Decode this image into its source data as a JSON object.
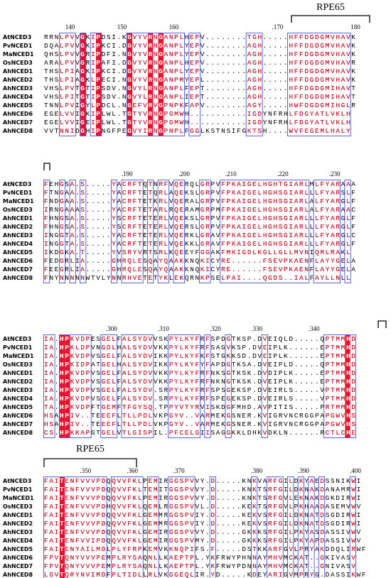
{
  "blocks": [
    {
      "label": "RPE65",
      "positions": [
        "140",
        "150",
        "160",
        ".170",
        "180"
      ],
      "rows": [
        {
          "name": "AtNCED3",
          "seq": "RRNLPVVGKIPDSI.KGVYVRNGANPLHEPV........TGH.....HFFDGDGMVHAVK"
        },
        {
          "name": "PvNCED1",
          "seq": "DQALPVVGKIPKCI.DGVYVRNGANPLYEPV........AGH.....HFFDGDGMVHAVK"
        },
        {
          "name": "MaNCED1",
          "seq": "QHSLPVVGRIPDFI.NGVYVRNGANPLYEPV........AGH.....HFFDGDGMVHAVK"
        },
        {
          "name": "OsNCED3",
          "seq": "ARALPVVGRIPAFI.DGVYVRNGANPLHEPV........AGH.....HFFDGDGMVHAVR"
        },
        {
          "name": "AhNCED1",
          "seq": "THSLPIAGKIPKCI.DGVYVRNGANPLYEPV........AGH.....HFFDGDGMVHAVK"
        },
        {
          "name": "AhNCED2",
          "seq": "THSLPIAGKLPECI.NGVYVRNGANPMYEPL........AGH.....HFFDGDGMVHAVK"
        },
        {
          "name": "AhNCED3",
          "seq": "VHSLPVTGTIPSDV.NGVYLRNGANPLFEPT........AGH.....HFFDGDGMIHAVT"
        },
        {
          "name": "AhNCED4",
          "seq": "VHSLPITGTIPSDV.NGVYLRNGANPLIEPT........AGH.....HFFDGDGMIHAVT"
        },
        {
          "name": "AhNCED5",
          "seq": "TNNLPVIGYLPDCL.NGEFVRVGPNPKFAPV........AGY.....HWFDGDGMIHGLR"
        },
        {
          "name": "AhNCED6",
          "seq": "EGELVVIGKIPLWL.TGTYVRNGPGMWH...........IGDYNFRHLFDGYATLVKLH"
        },
        {
          "name": "AhNCED7",
          "seq": "EGELVVIGEIPLWL.TGTYVRNGPGMWH...........IGDYNFRHLFDGYATLVKLH"
        },
        {
          "name": "AhNCED8",
          "seq": "VVTNNIDGHIPNGFPEGVYIRNGPNPLFGGLKSTNSIFGKTSH....WVFEGEMLHALY"
        }
      ]
    },
    {
      "positions": [
        ".190",
        ".200",
        ".210",
        ".220",
        ".230"
      ],
      "rows": [
        {
          "name": "AtNCED3",
          "seq": "FEHGSA.S.....YACRFTQTNRFVQERQLGRPVFPKAIGELHGHTGIARLMLFYARAAA"
        },
        {
          "name": "PvNCED1",
          "seq": "FTNGAA.S.....YACRFTETQRLAQEKSLGRPVFPKAIGELHGHSGIARLLLFYARSLF"
        },
        {
          "name": "MaNCED1",
          "seq": "FNDGAA.S.....YACRFTETKRLVQERALGRPVFPKAIGELHGHSGIARLALFYARGLF"
        },
        {
          "name": "OsNCED3",
          "seq": "IRNGAAAS.....YACRFTETARLRQERAMGRPMFPKAIGELHGHSGIARLALFYARAAC"
        },
        {
          "name": "AhNCED1",
          "seq": "FHNGSA.S.....YSCRFTETERLVQEKSLGRPVFPKAIGELHGHSGIARLLLFYARGLF"
        },
        {
          "name": "AhNCED2",
          "seq": "FHNGSA.S.....YSCRFTETERLVQERSLGRPVFPKAIGELHGHSGIARLLLFYARGLF"
        },
        {
          "name": "AhNCED3",
          "seq": "INGGTA.S.....YACRFTETERLVQERKLGRAVFPKAIGELHGHSGIARLLLFYARGLC"
        },
        {
          "name": "AhNCED4",
          "seq": "INGGTA.S.....YACRFTETERLVQEKKLGRAVFPKAIGELHGHSGIARLLLFYARGLF"
        },
        {
          "name": "AhNCED5",
          "seq": "IKDGKA.T.....YVSRYVRTSRLKQEEYFGGAKFMKIGDLKGLLGLLMVNIQMLRAKL"
        },
        {
          "name": "AhNCED6",
          "seq": "FEDGRLIA.....GHRQLESQAYQAAKKNQKICYRE......FSEVPKAENFLAYYGELA"
        },
        {
          "name": "AhNCED7",
          "seq": "FEEGRLIA.....GHRQLESQAYQAAKKNQKICYRE......FSEVPKAENFLAYYGELA"
        },
        {
          "name": "AhNCED8",
          "seq": "FNYNNNNNWTVLYNNRHVETETYKLEKQRNKPSELPAI....QGDS..IALFAYLLNLL"
        }
      ]
    },
    {
      "positions": [
        ".300",
        ".310",
        ".320",
        ".330",
        ".340"
      ],
      "rows": [
        {
          "name": "AtNCED3",
          "seq": "IA.HPKVDPESGELFALSYDVVSKPYLKYFRFSPDGTKSP.DVEIQLD.....QPTMMHD"
        },
        {
          "name": "PvNCED1",
          "seq": "IA.HPKLDPVNGDLHALSYDVVKKPYLKYFRFSAGVKSP.DVEIPLK......EPTMMHD"
        },
        {
          "name": "MaNCED1",
          "seq": "IA.HPKVDPVSGELFALSYDVIKKPYLKYFKFSTGKKSD.DVEIPLK......EPTMMHD"
        },
        {
          "name": "OsNCED3",
          "seq": "IA.HPKIDPATGELHALSYDVIKKPYLKYFYFAPDGTKSA.DVEIPLD.....QPTMMHD"
        },
        {
          "name": "AhNCED1",
          "seq": "IA.HPKVDPVSGELFALSYDVVKKPYLKYFRFNKSGTKSK.DVDIPLK.....EPTMMHD"
        },
        {
          "name": "AhNCED2",
          "seq": "IA.HPKVDPVSGELFALSYDVVKKPYLKYFRFNKNGTKSK.DVEIPLK.....EPTMMHD"
        },
        {
          "name": "AhNCED3",
          "seq": "IA.HPKVDPVSGELFALSYDV.SRPYLKYFRFSPSGEKSP.DVEIRLS.....VPTMMHD"
        },
        {
          "name": "AhNCED4",
          "seq": "IA.HPKVDPVSGELFALSYDV.SRPYLKYFRFSPEGEKSP.DVEIRLS.....VPTMMHD"
        },
        {
          "name": "AhNCED5",
          "seq": "TA.HPKVDPFTGEMFTFGYSQ.TPPYVTYRVISKDGFMHD.AVPITIS.....PRTMMHD"
        },
        {
          "name": "AhNCED6",
          "seq": "HSAHPIV..TEEEFLTLLPDLVKPGYV..VARMEKGSNER.KVIGRVNCRGGPAPGWVHS"
        },
        {
          "name": "AhNCED7",
          "seq": "HSAHPIV..TEEEFLTLLPDLVKPGYV..VARMEKGSNER.KVIGRVNCRGGPAPGWVHS"
        },
        {
          "name": "AhNCED8",
          "seq": "CS.HPKKAPGTGELVTLGISPIL.PFCELGIISAGGKKLDHKVDKLN......RCTLCHE"
        }
      ]
    },
    {
      "label": "RPE65",
      "positions": [
        ".350",
        ".360",
        ".370",
        ".380",
        ".390",
        ".400"
      ],
      "rows": [
        {
          "name": "AtNCED3",
          "seq": "FAITENFVVVPDQQVVFKLPEMIRGGSPVVY.D.....KNKVARFGILDKYAEDSSNIKWI"
        },
        {
          "name": "PvNCED1",
          "seq": "FAITENFVVVPDQQVVFKLTEMITGGSPVVY.D.....KNKTSRFGILDKNAKDANAMRWI"
        },
        {
          "name": "MaNCED1",
          "seq": "FAITENFVVVPDQQVVFKLPEMIRGGSPVVY.D.....KNKTSRFGVLEKNAKDGKDIRWI"
        },
        {
          "name": "OsNCED3",
          "seq": "FAITENFVVVPDHQVVFKLQEMLRGGSPVVL.D.....KEKTSRFGVLPKHAADASEMVWV"
        },
        {
          "name": "AhNCED1",
          "seq": "FAITENFVVVPDQQVVFKLGEMMRGGSPVIY.D.....KEKVSRFGILDKNATDSGDIRWI"
        },
        {
          "name": "AhNCED2",
          "seq": "FAITENFVVVPDQQVVFKLGEMMRGGSPVIY.D.....KEKVSRFGILDKNATDSGDIRWI"
        },
        {
          "name": "AhNCED3",
          "seq": "FAITENFVVVPDQQVVFKLGEMIRGGSPVVY.D.....GKKKSRFGILPKYASDASSIVWV"
        },
        {
          "name": "AhNCED4",
          "seq": "FAITENFVVIPDQQVVFKLGEMIRGGSPVMY.D.....GKKKSRFGILPKYAPDASSIVWV"
        },
        {
          "name": "AhNCED5",
          "seq": "FAITENYAILMDLPLYFRPKEMVKKNQPIFS.F.....DSTKKARFGVLPRYAKDDQLIRWF"
        },
        {
          "name": "AhNCED6",
          "seq": "FPVTQNYVVVPEMPLRYSAQNLLKAEPTPL.YKFRWYPHNNAYMHVMCKAT..GKIVASV"
        },
        {
          "name": "AhNCED7",
          "seq": "FPVTQNYVVVPEMPLRYSAQNLLKAEPTPL.YKFRWYPDNNAYMHVMCKAT..GNIVASV"
        },
        {
          "name": "AhNCED8",
          "seq": "LGVTQRYNVIMDFPLTIDLLRLVKGGEQLIR.YD.....KDEYARIGVMPRYG.DASSIKWF"
        }
      ]
    }
  ]
}
